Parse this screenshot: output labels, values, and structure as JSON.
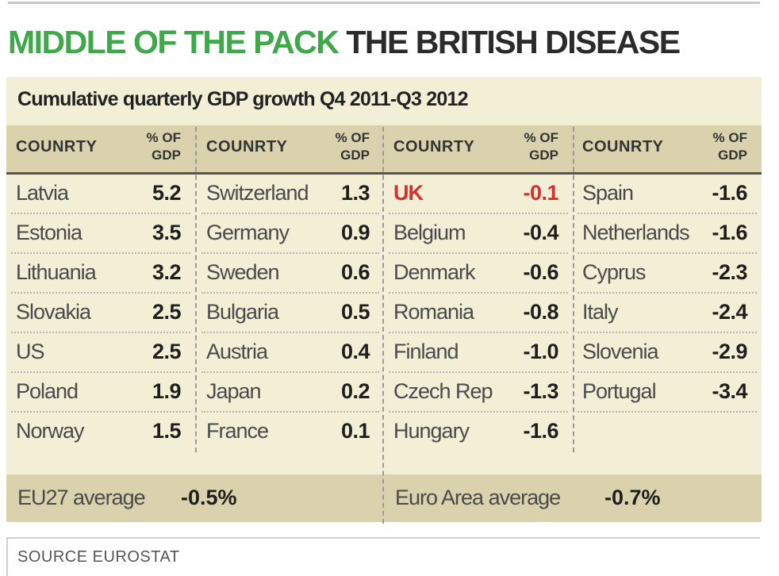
{
  "headline": {
    "part1": "MIDDLE OF THE PACK",
    "part2": "THE BRITISH DISEASE"
  },
  "colors": {
    "accent_green": "#3ea84a",
    "highlight_red": "#d2322d",
    "panel": "#f3efd6",
    "band": "#d9d2ac"
  },
  "chart_data": {
    "type": "table",
    "title": "Cumulative quarterly GDP growth Q4 2011-Q3 2012",
    "column_header_country": "COUNRTY",
    "column_header_value": [
      "% OF",
      "GDP"
    ],
    "columns": [
      [
        {
          "country": "Latvia",
          "value": "5.2"
        },
        {
          "country": "Estonia",
          "value": "3.5"
        },
        {
          "country": "Lithuania",
          "value": "3.2"
        },
        {
          "country": "Slovakia",
          "value": "2.5"
        },
        {
          "country": "US",
          "value": "2.5"
        },
        {
          "country": "Poland",
          "value": "1.9"
        },
        {
          "country": "Norway",
          "value": "1.5"
        }
      ],
      [
        {
          "country": "Switzerland",
          "value": "1.3"
        },
        {
          "country": "Germany",
          "value": "0.9"
        },
        {
          "country": "Sweden",
          "value": "0.6"
        },
        {
          "country": "Bulgaria",
          "value": "0.5"
        },
        {
          "country": "Austria",
          "value": "0.4"
        },
        {
          "country": "Japan",
          "value": "0.2"
        },
        {
          "country": "France",
          "value": "0.1"
        }
      ],
      [
        {
          "country": "UK",
          "value": "-0.1",
          "highlight": true
        },
        {
          "country": "Belgium",
          "value": "-0.4"
        },
        {
          "country": "Denmark",
          "value": "-0.6"
        },
        {
          "country": "Romania",
          "value": "-0.8"
        },
        {
          "country": "Finland",
          "value": "-1.0"
        },
        {
          "country": "Czech Rep",
          "value": "-1.3"
        },
        {
          "country": "Hungary",
          "value": "-1.6"
        }
      ],
      [
        {
          "country": "Spain",
          "value": "-1.6"
        },
        {
          "country": "Netherlands",
          "value": "-1.6"
        },
        {
          "country": "Cyprus",
          "value": "-2.3"
        },
        {
          "country": "Italy",
          "value": "-2.4"
        },
        {
          "country": "Slovenia",
          "value": "-2.9"
        },
        {
          "country": "Portugal",
          "value": "-3.4"
        }
      ]
    ],
    "averages": [
      {
        "label": "EU27 average",
        "value": "-0.5%"
      },
      {
        "label": "Euro Area average",
        "value": "-0.7%"
      }
    ],
    "source": "SOURCE EUROSTAT"
  }
}
